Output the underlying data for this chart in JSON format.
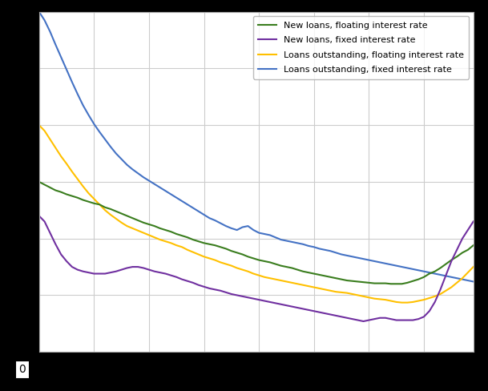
{
  "legend_labels": [
    "New loans, floating interest rate",
    "New loans, fixed interest rate",
    "Loans outstanding, floating interest rate",
    "Loans outstanding, fixed interest rate"
  ],
  "colors": {
    "new_float": "#3a7d1e",
    "new_fixed": "#7030a0",
    "out_float": "#ffc000",
    "out_fixed": "#4472c4"
  },
  "ylim": [
    0,
    6
  ],
  "n_points": 80,
  "background_color": "#000000",
  "plot_bg": "#ffffff",
  "grid_color": "#cccccc",
  "new_float": [
    3.0,
    2.95,
    2.9,
    2.85,
    2.82,
    2.78,
    2.75,
    2.72,
    2.68,
    2.65,
    2.62,
    2.6,
    2.55,
    2.52,
    2.48,
    2.44,
    2.4,
    2.36,
    2.32,
    2.28,
    2.25,
    2.22,
    2.18,
    2.15,
    2.12,
    2.08,
    2.05,
    2.02,
    1.98,
    1.95,
    1.92,
    1.9,
    1.88,
    1.85,
    1.82,
    1.78,
    1.75,
    1.72,
    1.68,
    1.65,
    1.62,
    1.6,
    1.58,
    1.55,
    1.52,
    1.5,
    1.48,
    1.45,
    1.42,
    1.4,
    1.38,
    1.36,
    1.34,
    1.32,
    1.3,
    1.28,
    1.26,
    1.25,
    1.24,
    1.23,
    1.22,
    1.21,
    1.21,
    1.21,
    1.2,
    1.2,
    1.2,
    1.22,
    1.25,
    1.28,
    1.32,
    1.38,
    1.42,
    1.48,
    1.55,
    1.62,
    1.68,
    1.75,
    1.8,
    1.88
  ],
  "new_fixed": [
    2.4,
    2.3,
    2.1,
    1.9,
    1.72,
    1.6,
    1.5,
    1.45,
    1.42,
    1.4,
    1.38,
    1.38,
    1.38,
    1.4,
    1.42,
    1.45,
    1.48,
    1.5,
    1.5,
    1.48,
    1.45,
    1.42,
    1.4,
    1.38,
    1.35,
    1.32,
    1.28,
    1.25,
    1.22,
    1.18,
    1.15,
    1.12,
    1.1,
    1.08,
    1.05,
    1.02,
    1.0,
    0.98,
    0.96,
    0.94,
    0.92,
    0.9,
    0.88,
    0.86,
    0.84,
    0.82,
    0.8,
    0.78,
    0.76,
    0.74,
    0.72,
    0.7,
    0.68,
    0.66,
    0.64,
    0.62,
    0.6,
    0.58,
    0.56,
    0.54,
    0.56,
    0.58,
    0.6,
    0.6,
    0.58,
    0.56,
    0.56,
    0.56,
    0.56,
    0.58,
    0.62,
    0.72,
    0.88,
    1.1,
    1.35,
    1.6,
    1.8,
    2.0,
    2.15,
    2.3
  ],
  "out_float": [
    4.0,
    3.9,
    3.75,
    3.6,
    3.45,
    3.32,
    3.18,
    3.05,
    2.92,
    2.8,
    2.7,
    2.6,
    2.5,
    2.42,
    2.35,
    2.28,
    2.22,
    2.18,
    2.14,
    2.1,
    2.06,
    2.02,
    1.98,
    1.95,
    1.92,
    1.88,
    1.85,
    1.8,
    1.76,
    1.72,
    1.68,
    1.65,
    1.62,
    1.58,
    1.55,
    1.52,
    1.48,
    1.45,
    1.42,
    1.38,
    1.35,
    1.32,
    1.3,
    1.28,
    1.26,
    1.24,
    1.22,
    1.2,
    1.18,
    1.16,
    1.14,
    1.12,
    1.1,
    1.08,
    1.06,
    1.05,
    1.04,
    1.02,
    1.0,
    0.98,
    0.96,
    0.94,
    0.93,
    0.92,
    0.9,
    0.88,
    0.87,
    0.87,
    0.88,
    0.9,
    0.92,
    0.95,
    0.98,
    1.02,
    1.08,
    1.14,
    1.22,
    1.3,
    1.4,
    1.5
  ],
  "out_fixed": [
    6.0,
    5.85,
    5.65,
    5.42,
    5.2,
    4.98,
    4.76,
    4.55,
    4.35,
    4.18,
    4.02,
    3.88,
    3.75,
    3.62,
    3.5,
    3.4,
    3.3,
    3.22,
    3.15,
    3.08,
    3.02,
    2.96,
    2.9,
    2.84,
    2.78,
    2.72,
    2.66,
    2.6,
    2.54,
    2.48,
    2.42,
    2.36,
    2.32,
    2.27,
    2.22,
    2.18,
    2.15,
    2.2,
    2.22,
    2.15,
    2.1,
    2.08,
    2.06,
    2.02,
    1.98,
    1.96,
    1.94,
    1.92,
    1.9,
    1.87,
    1.85,
    1.82,
    1.8,
    1.78,
    1.75,
    1.72,
    1.7,
    1.68,
    1.66,
    1.64,
    1.62,
    1.6,
    1.58,
    1.56,
    1.54,
    1.52,
    1.5,
    1.48,
    1.46,
    1.44,
    1.42,
    1.4,
    1.38,
    1.36,
    1.34,
    1.32,
    1.3,
    1.28,
    1.26,
    1.24
  ]
}
